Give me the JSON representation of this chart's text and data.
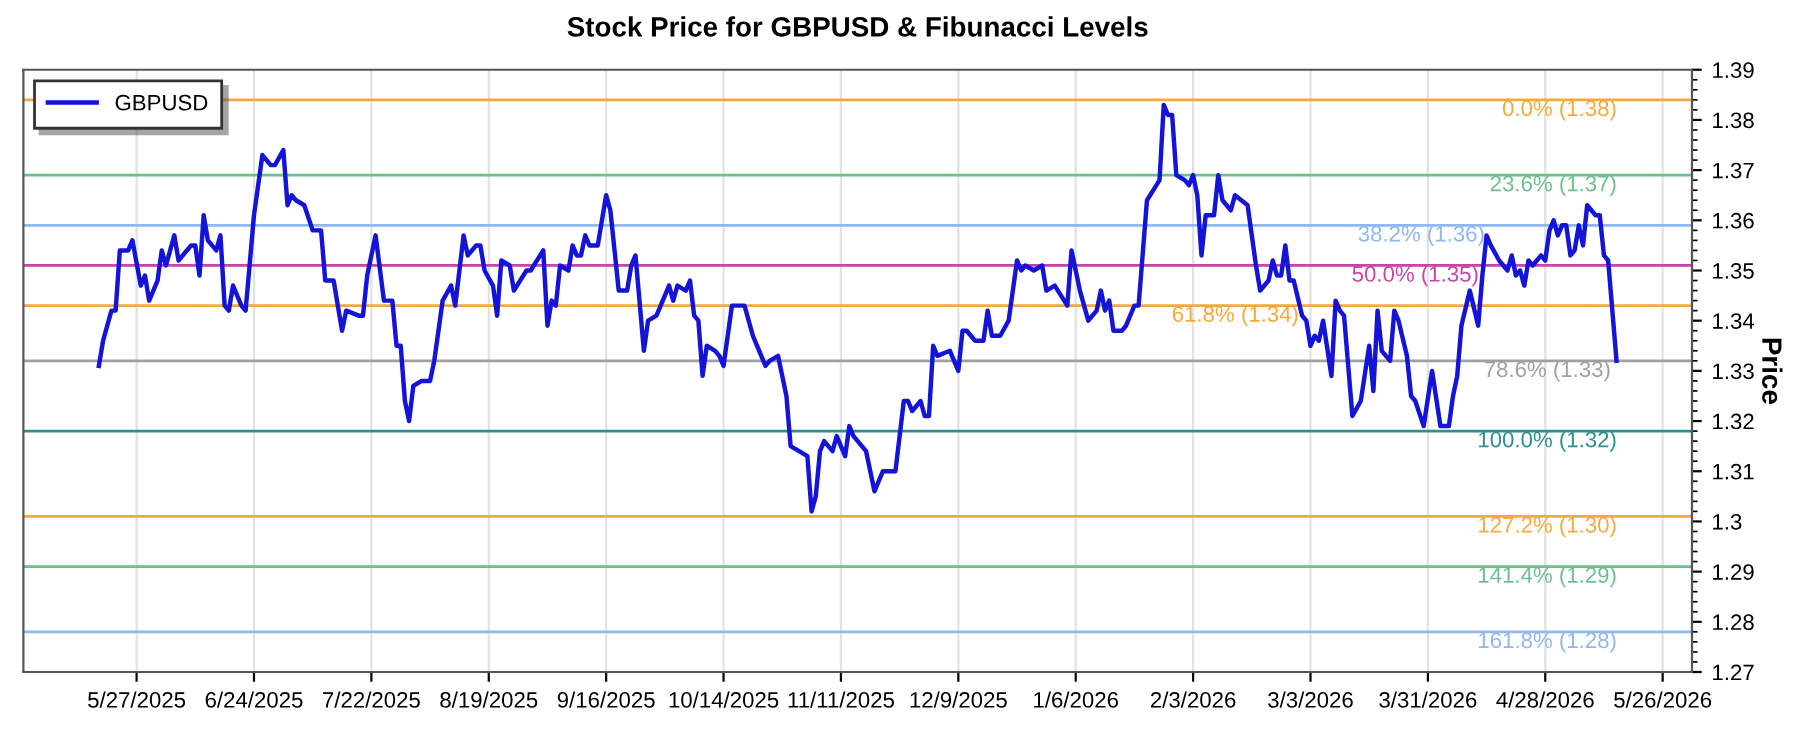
{
  "chart_data": {
    "type": "line",
    "title": "Stock Price for GBPUSD & Fibunacci Levels",
    "ylabel": "Price",
    "series": [
      {
        "name": "GBPUSD",
        "color": "#1414d8",
        "x": [
          "2025-05-18",
          "2025-05-19",
          "2025-05-21",
          "2025-05-22",
          "2025-05-23",
          "2025-05-25",
          "2025-05-26",
          "2025-05-28",
          "2025-05-29",
          "2025-05-30",
          "2025-06-01",
          "2025-06-02",
          "2025-06-03",
          "2025-06-05",
          "2025-06-06",
          "2025-06-09",
          "2025-06-10",
          "2025-06-11",
          "2025-06-12",
          "2025-06-13",
          "2025-06-15",
          "2025-06-16",
          "2025-06-17",
          "2025-06-18",
          "2025-06-19",
          "2025-06-21",
          "2025-06-22",
          "2025-06-24",
          "2025-06-26",
          "2025-06-28",
          "2025-06-29",
          "2025-07-01",
          "2025-07-02",
          "2025-07-03",
          "2025-07-04",
          "2025-07-06",
          "2025-07-08",
          "2025-07-10",
          "2025-07-11",
          "2025-07-13",
          "2025-07-15",
          "2025-07-16",
          "2025-07-19",
          "2025-07-20",
          "2025-07-21",
          "2025-07-23",
          "2025-07-25",
          "2025-07-27",
          "2025-07-28",
          "2025-07-29",
          "2025-07-30",
          "2025-07-31",
          "2025-08-01",
          "2025-08-03",
          "2025-08-05",
          "2025-08-06",
          "2025-08-08",
          "2025-08-10",
          "2025-08-11",
          "2025-08-13",
          "2025-08-14",
          "2025-08-16",
          "2025-08-17",
          "2025-08-18",
          "2025-08-20",
          "2025-08-21",
          "2025-08-22",
          "2025-08-24",
          "2025-08-25",
          "2025-08-28",
          "2025-08-29",
          "2025-09-01",
          "2025-09-02",
          "2025-09-03",
          "2025-09-04",
          "2025-09-05",
          "2025-09-07",
          "2025-09-08",
          "2025-09-09",
          "2025-09-10",
          "2025-09-11",
          "2025-09-12",
          "2025-09-14",
          "2025-09-16",
          "2025-09-17",
          "2025-09-19",
          "2025-09-21",
          "2025-09-22",
          "2025-09-23",
          "2025-09-25",
          "2025-09-26",
          "2025-09-28",
          "2025-09-29",
          "2025-10-01",
          "2025-10-02",
          "2025-10-03",
          "2025-10-05",
          "2025-10-06",
          "2025-10-07",
          "2025-10-08",
          "2025-10-09",
          "2025-10-10",
          "2025-10-12",
          "2025-10-13",
          "2025-10-14",
          "2025-10-16",
          "2025-10-17",
          "2025-10-19",
          "2025-10-21",
          "2025-10-22",
          "2025-10-24",
          "2025-10-25",
          "2025-10-27",
          "2025-10-29",
          "2025-10-30",
          "2025-11-01",
          "2025-11-03",
          "2025-11-04",
          "2025-11-05",
          "2025-11-06",
          "2025-11-07",
          "2025-11-09",
          "2025-11-10",
          "2025-11-12",
          "2025-11-13",
          "2025-11-14",
          "2025-11-17",
          "2025-11-19",
          "2025-11-21",
          "2025-11-24",
          "2025-11-26",
          "2025-11-27",
          "2025-11-28",
          "2025-11-30",
          "2025-12-01",
          "2025-12-02",
          "2025-12-03",
          "2025-12-04",
          "2025-12-07",
          "2025-12-09",
          "2025-12-10",
          "2025-12-11",
          "2025-12-13",
          "2025-12-15",
          "2025-12-16",
          "2025-12-17",
          "2025-12-19",
          "2025-12-21",
          "2025-12-23",
          "2025-12-24",
          "2025-12-25",
          "2025-12-27",
          "2025-12-29",
          "2025-12-30",
          "2026-01-01",
          "2026-01-04",
          "2026-01-05",
          "2026-01-07",
          "2026-01-09",
          "2026-01-11",
          "2026-01-12",
          "2026-01-13",
          "2026-01-14",
          "2026-01-15",
          "2026-01-17",
          "2026-01-18",
          "2026-01-20",
          "2026-01-21",
          "2026-01-23",
          "2026-01-26",
          "2026-01-27",
          "2026-01-28",
          "2026-01-29",
          "2026-01-30",
          "2026-02-01",
          "2026-02-02",
          "2026-02-03",
          "2026-02-04",
          "2026-02-05",
          "2026-02-06",
          "2026-02-08",
          "2026-02-09",
          "2026-02-10",
          "2026-02-12",
          "2026-02-13",
          "2026-02-16",
          "2026-02-17",
          "2026-02-18",
          "2026-02-19",
          "2026-02-21",
          "2026-02-22",
          "2026-02-23",
          "2026-02-24",
          "2026-02-25",
          "2026-02-26",
          "2026-02-27",
          "2026-03-01",
          "2026-03-02",
          "2026-03-03",
          "2026-03-04",
          "2026-03-05",
          "2026-03-06",
          "2026-03-08",
          "2026-03-09",
          "2026-03-10",
          "2026-03-11",
          "2026-03-13",
          "2026-03-15",
          "2026-03-17",
          "2026-03-18",
          "2026-03-19",
          "2026-03-20",
          "2026-03-22",
          "2026-03-23",
          "2026-03-24",
          "2026-03-26",
          "2026-03-27",
          "2026-03-28",
          "2026-03-30",
          "2026-04-01",
          "2026-04-03",
          "2026-04-05",
          "2026-04-06",
          "2026-04-07",
          "2026-04-08",
          "2026-04-10",
          "2026-04-12",
          "2026-04-13",
          "2026-04-14",
          "2026-04-15",
          "2026-04-17",
          "2026-04-19",
          "2026-04-20",
          "2026-04-21",
          "2026-04-22",
          "2026-04-23",
          "2026-04-24",
          "2026-04-25",
          "2026-04-26",
          "2026-04-27",
          "2026-04-28",
          "2026-04-29",
          "2026-04-30",
          "2026-05-01",
          "2026-05-02",
          "2026-05-03",
          "2026-05-04",
          "2026-05-05",
          "2026-05-06",
          "2026-05-07",
          "2026-05-08",
          "2026-05-10",
          "2026-05-11",
          "2026-05-12",
          "2026-05-13",
          "2026-05-15"
        ],
        "values": [
          1.331,
          1.336,
          1.342,
          1.342,
          1.354,
          1.354,
          1.356,
          1.347,
          1.349,
          1.344,
          1.348,
          1.354,
          1.351,
          1.357,
          1.352,
          1.355,
          1.355,
          1.349,
          1.361,
          1.356,
          1.354,
          1.357,
          1.343,
          1.342,
          1.347,
          1.343,
          1.342,
          1.361,
          1.373,
          1.371,
          1.371,
          1.374,
          1.363,
          1.365,
          1.364,
          1.363,
          1.358,
          1.358,
          1.348,
          1.348,
          1.338,
          1.342,
          1.341,
          1.341,
          1.349,
          1.357,
          1.344,
          1.344,
          1.335,
          1.335,
          1.324,
          1.32,
          1.327,
          1.328,
          1.328,
          1.332,
          1.344,
          1.347,
          1.343,
          1.357,
          1.353,
          1.355,
          1.355,
          1.35,
          1.347,
          1.341,
          1.352,
          1.351,
          1.346,
          1.35,
          1.35,
          1.354,
          1.339,
          1.344,
          1.343,
          1.351,
          1.35,
          1.355,
          1.353,
          1.353,
          1.357,
          1.355,
          1.355,
          1.365,
          1.362,
          1.346,
          1.346,
          1.351,
          1.353,
          1.334,
          1.34,
          1.341,
          1.343,
          1.347,
          1.344,
          1.347,
          1.346,
          1.348,
          1.341,
          1.34,
          1.329,
          1.335,
          1.334,
          1.333,
          1.331,
          1.343,
          1.343,
          1.343,
          1.337,
          1.335,
          1.331,
          1.332,
          1.333,
          1.325,
          1.315,
          1.314,
          1.313,
          1.302,
          1.305,
          1.314,
          1.316,
          1.314,
          1.317,
          1.313,
          1.319,
          1.317,
          1.314,
          1.306,
          1.31,
          1.31,
          1.324,
          1.324,
          1.322,
          1.324,
          1.321,
          1.321,
          1.335,
          1.333,
          1.334,
          1.33,
          1.338,
          1.338,
          1.336,
          1.336,
          1.342,
          1.337,
          1.337,
          1.34,
          1.352,
          1.35,
          1.351,
          1.35,
          1.351,
          1.346,
          1.347,
          1.343,
          1.354,
          1.346,
          1.34,
          1.342,
          1.346,
          1.342,
          1.344,
          1.338,
          1.338,
          1.339,
          1.343,
          1.343,
          1.364,
          1.368,
          1.383,
          1.381,
          1.381,
          1.369,
          1.368,
          1.367,
          1.369,
          1.365,
          1.353,
          1.361,
          1.361,
          1.369,
          1.364,
          1.362,
          1.365,
          1.363,
          1.357,
          1.351,
          1.346,
          1.348,
          1.352,
          1.349,
          1.349,
          1.355,
          1.348,
          1.348,
          1.341,
          1.34,
          1.335,
          1.337,
          1.336,
          1.34,
          1.329,
          1.344,
          1.342,
          1.341,
          1.321,
          1.324,
          1.335,
          1.326,
          1.342,
          1.334,
          1.332,
          1.342,
          1.34,
          1.333,
          1.325,
          1.324,
          1.319,
          1.33,
          1.319,
          1.319,
          1.325,
          1.329,
          1.339,
          1.346,
          1.339,
          1.349,
          1.357,
          1.355,
          1.352,
          1.35,
          1.353,
          1.349,
          1.35,
          1.347,
          1.352,
          1.351,
          1.352,
          1.353,
          1.352,
          1.358,
          1.36,
          1.357,
          1.359,
          1.359,
          1.353,
          1.354,
          1.359,
          1.355,
          1.363,
          1.361,
          1.361,
          1.353,
          1.352,
          1.332
        ]
      }
    ],
    "xlim": [
      "2025-04-30",
      "2026-06-02"
    ],
    "xticks": [
      {
        "value": "2025-05-27",
        "label": "5/27/2025"
      },
      {
        "value": "2025-06-24",
        "label": "6/24/2025"
      },
      {
        "value": "2025-07-22",
        "label": "7/22/2025"
      },
      {
        "value": "2025-08-19",
        "label": "8/19/2025"
      },
      {
        "value": "2025-09-16",
        "label": "9/16/2025"
      },
      {
        "value": "2025-10-14",
        "label": "10/14/2025"
      },
      {
        "value": "2025-11-11",
        "label": "11/11/2025"
      },
      {
        "value": "2025-12-09",
        "label": "12/9/2025"
      },
      {
        "value": "2026-01-06",
        "label": "1/6/2026"
      },
      {
        "value": "2026-02-03",
        "label": "2/3/2026"
      },
      {
        "value": "2026-03-03",
        "label": "3/3/2026"
      },
      {
        "value": "2026-03-31",
        "label": "3/31/2026"
      },
      {
        "value": "2026-04-28",
        "label": "4/28/2026"
      },
      {
        "value": "2026-05-26",
        "label": "5/26/2026"
      }
    ],
    "ylim": [
      1.27,
      1.39
    ],
    "yticks": [
      1.27,
      1.28,
      1.29,
      1.3,
      1.31,
      1.32,
      1.33,
      1.34,
      1.35,
      1.36,
      1.37,
      1.38,
      1.39
    ],
    "ref_lines": [
      {
        "axis": "y",
        "value": 1.384,
        "label": "0.0% (1.38)",
        "color": "#f5a93a"
      },
      {
        "axis": "y",
        "value": 1.369,
        "label": "23.6% (1.37)",
        "color": "#6cc08a"
      },
      {
        "axis": "y",
        "value": 1.359,
        "label": "38.2% (1.36)",
        "color": "#8fb8ee"
      },
      {
        "axis": "y",
        "value": 1.351,
        "label": "50.0% (1.35)",
        "color": "#c844a8"
      },
      {
        "axis": "y",
        "value": 1.343,
        "label": "61.8% (1.34)",
        "color": "#f5a93a"
      },
      {
        "axis": "y",
        "value": 1.332,
        "label": "78.6% (1.33)",
        "color": "#a0a0a0"
      },
      {
        "axis": "y",
        "value": 1.318,
        "label": "100.0% (1.32)",
        "color": "#2e8f8f"
      },
      {
        "axis": "y",
        "value": 1.301,
        "label": "127.2% (1.30)",
        "color": "#f5a93a"
      },
      {
        "axis": "y",
        "value": 1.291,
        "label": "141.4% (1.29)",
        "color": "#6cc08a"
      },
      {
        "axis": "y",
        "value": 1.278,
        "label": "161.8% (1.28)",
        "color": "#8fb8ee"
      }
    ],
    "grid": "x",
    "legend": "top left",
    "marker": "none",
    "line_style": "solid"
  }
}
